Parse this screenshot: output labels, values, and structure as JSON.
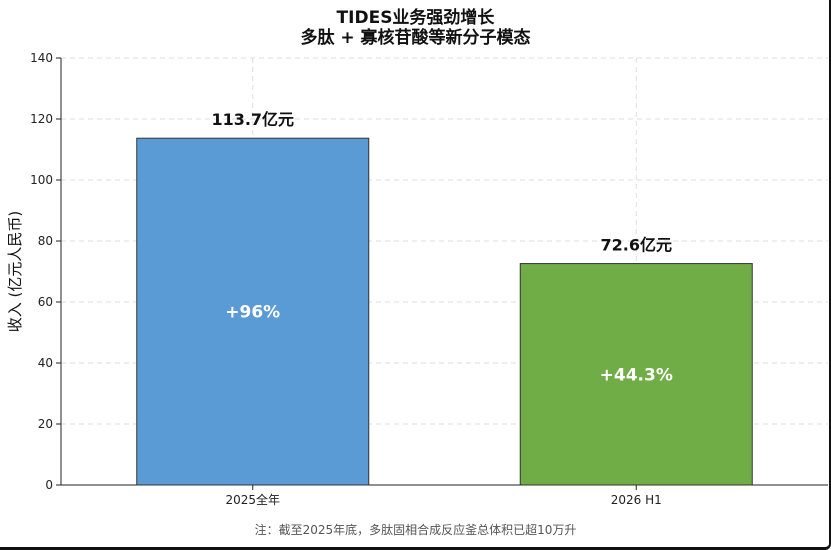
{
  "chart_data": {
    "type": "bar",
    "title": "TIDES业务强劲增长",
    "subtitle": "多肽 + 寡核苷酸等新分子模态",
    "categories": [
      "2025全年",
      "2026 H1"
    ],
    "values": [
      113.7,
      72.6
    ],
    "value_labels": [
      "113.7亿元",
      "72.6亿元"
    ],
    "growth_labels": [
      "+96%",
      "+44.3%"
    ],
    "bar_colors": [
      "#5b9bd5",
      "#70ad47"
    ],
    "xlabel": "",
    "ylabel": "收入 (亿元人民币)",
    "ylim": [
      0,
      140
    ],
    "yticks": [
      0,
      20,
      40,
      60,
      80,
      100,
      120,
      140
    ],
    "grid": true,
    "note": "注：截至2025年底，多肽固相合成反应釜总体积已超10万升"
  }
}
